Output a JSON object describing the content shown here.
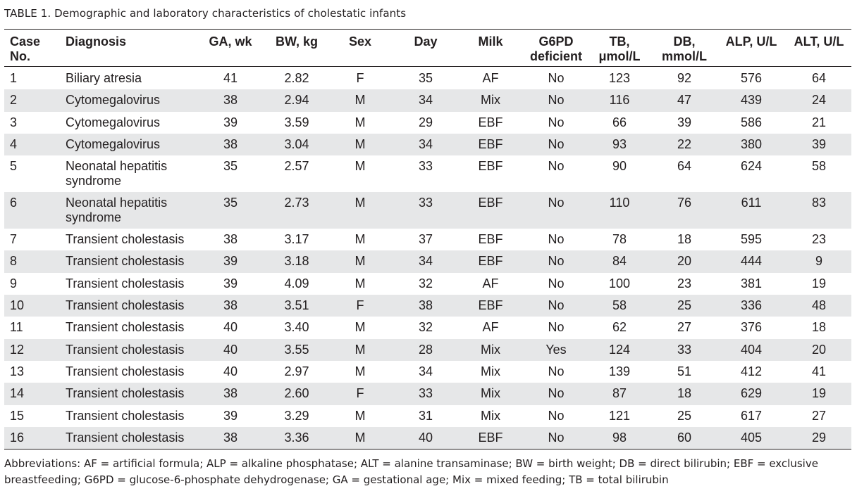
{
  "table": {
    "caption_label": "TABLE 1.",
    "caption_text": "Demographic and laboratory characteristics of cholestatic infants",
    "headers": {
      "case_line1": "Case",
      "case_line2": "No.",
      "diagnosis": "Diagnosis",
      "ga": "GA, wk",
      "bw": "BW, kg",
      "sex": "Sex",
      "day": "Day",
      "milk": "Milk",
      "g6pd_line1": "G6PD",
      "g6pd_line2": "deficient",
      "tb_line1": "TB,",
      "tb_line2": "μmol/L",
      "db_line1": "DB,",
      "db_line2": "mmol/L",
      "alp": "ALP, U/L",
      "alt": "ALT, U/L"
    },
    "rows": [
      {
        "case": "1",
        "diagnosis": "Biliary atresia",
        "ga": "41",
        "bw": "2.82",
        "sex": "F",
        "day": "35",
        "milk": "AF",
        "g6pd": "No",
        "tb": "123",
        "db": "92",
        "alp": "576",
        "alt": "64"
      },
      {
        "case": "2",
        "diagnosis": "Cytomegalovirus",
        "ga": "38",
        "bw": "2.94",
        "sex": "M",
        "day": "34",
        "milk": "Mix",
        "g6pd": "No",
        "tb": "116",
        "db": "47",
        "alp": "439",
        "alt": "24"
      },
      {
        "case": "3",
        "diagnosis": "Cytomegalovirus",
        "ga": "39",
        "bw": "3.59",
        "sex": "M",
        "day": "29",
        "milk": "EBF",
        "g6pd": "No",
        "tb": "66",
        "db": "39",
        "alp": "586",
        "alt": "21"
      },
      {
        "case": "4",
        "diagnosis": "Cytomegalovirus",
        "ga": "38",
        "bw": "3.04",
        "sex": "M",
        "day": "34",
        "milk": "EBF",
        "g6pd": "No",
        "tb": "93",
        "db": "22",
        "alp": "380",
        "alt": "39"
      },
      {
        "case": "5",
        "diagnosis": "Neonatal hepatitis syndrome",
        "ga": "35",
        "bw": "2.57",
        "sex": "M",
        "day": "33",
        "milk": "EBF",
        "g6pd": "No",
        "tb": "90",
        "db": "64",
        "alp": "624",
        "alt": "58"
      },
      {
        "case": "6",
        "diagnosis": "Neonatal hepatitis syndrome",
        "ga": "35",
        "bw": "2.73",
        "sex": "M",
        "day": "33",
        "milk": "EBF",
        "g6pd": "No",
        "tb": "110",
        "db": "76",
        "alp": "611",
        "alt": "83"
      },
      {
        "case": "7",
        "diagnosis": "Transient cholestasis",
        "ga": "38",
        "bw": "3.17",
        "sex": "M",
        "day": "37",
        "milk": "EBF",
        "g6pd": "No",
        "tb": "78",
        "db": "18",
        "alp": "595",
        "alt": "23"
      },
      {
        "case": "8",
        "diagnosis": "Transient cholestasis",
        "ga": "39",
        "bw": "3.18",
        "sex": "M",
        "day": "34",
        "milk": "EBF",
        "g6pd": "No",
        "tb": "84",
        "db": "20",
        "alp": "444",
        "alt": "9"
      },
      {
        "case": "9",
        "diagnosis": "Transient cholestasis",
        "ga": "39",
        "bw": "4.09",
        "sex": "M",
        "day": "32",
        "milk": "AF",
        "g6pd": "No",
        "tb": "100",
        "db": "23",
        "alp": "381",
        "alt": "19"
      },
      {
        "case": "10",
        "diagnosis": "Transient cholestasis",
        "ga": "38",
        "bw": "3.51",
        "sex": "F",
        "day": "38",
        "milk": "EBF",
        "g6pd": "No",
        "tb": "58",
        "db": "25",
        "alp": "336",
        "alt": "48"
      },
      {
        "case": "11",
        "diagnosis": "Transient cholestasis",
        "ga": "40",
        "bw": "3.40",
        "sex": "M",
        "day": "32",
        "milk": "AF",
        "g6pd": "No",
        "tb": "62",
        "db": "27",
        "alp": "376",
        "alt": "18"
      },
      {
        "case": "12",
        "diagnosis": "Transient cholestasis",
        "ga": "40",
        "bw": "3.55",
        "sex": "M",
        "day": "28",
        "milk": "Mix",
        "g6pd": "Yes",
        "tb": "124",
        "db": "33",
        "alp": "404",
        "alt": "20"
      },
      {
        "case": "13",
        "diagnosis": "Transient cholestasis",
        "ga": "40",
        "bw": "2.97",
        "sex": "M",
        "day": "34",
        "milk": "Mix",
        "g6pd": "No",
        "tb": "139",
        "db": "51",
        "alp": "412",
        "alt": "41"
      },
      {
        "case": "14",
        "diagnosis": "Transient cholestasis",
        "ga": "38",
        "bw": "2.60",
        "sex": "F",
        "day": "33",
        "milk": "Mix",
        "g6pd": "No",
        "tb": "87",
        "db": "18",
        "alp": "629",
        "alt": "19"
      },
      {
        "case": "15",
        "diagnosis": "Transient cholestasis",
        "ga": "39",
        "bw": "3.29",
        "sex": "M",
        "day": "31",
        "milk": "Mix",
        "g6pd": "No",
        "tb": "121",
        "db": "25",
        "alp": "617",
        "alt": "27"
      },
      {
        "case": "16",
        "diagnosis": "Transient cholestasis",
        "ga": "38",
        "bw": "3.36",
        "sex": "M",
        "day": "40",
        "milk": "EBF",
        "g6pd": "No",
        "tb": "98",
        "db": "60",
        "alp": "405",
        "alt": "29"
      }
    ],
    "footnote": "Abbreviations: AF = artificial formula; ALP = alkaline phosphatase; ALT = alanine transaminase; BW = birth weight; DB = direct bilirubin; EBF = exclusive breastfeeding; G6PD = glucose-6-phosphate dehydrogenase; GA = gestational age; Mix = mixed feeding; TB = total bilirubin",
    "colors": {
      "text": "#231f20",
      "shade": "#e6e7e8"
    }
  }
}
